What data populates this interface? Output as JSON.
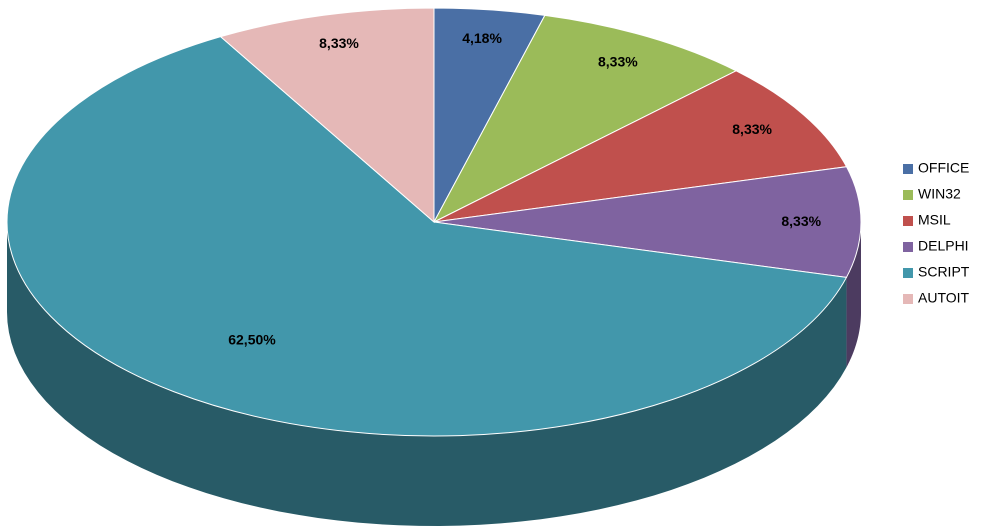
{
  "chart_data": {
    "type": "pie",
    "categories": [
      "OFFICE",
      "WIN32",
      "MSIL",
      "DELPHI",
      "SCRIPT",
      "AUTOIT"
    ],
    "values": [
      4.18,
      8.33,
      8.33,
      8.33,
      62.5,
      8.33
    ],
    "value_labels": [
      "4,18%",
      "8,33%",
      "8,33%",
      "8,33%",
      "62,50%",
      "8,33%"
    ],
    "colors": [
      "#4a6fa5",
      "#9bbb59",
      "#c0504d",
      "#7f63a0",
      "#4297ab",
      "#e5b8b7"
    ],
    "legend": "right"
  }
}
